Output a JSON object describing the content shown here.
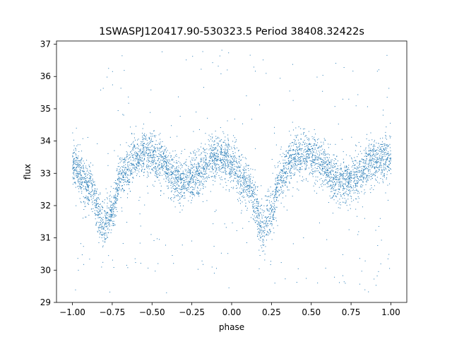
{
  "chart_data": {
    "type": "scatter",
    "title": "1SWASPJ120417.90-530323.5 Period 38408.32422s",
    "xlabel": "phase",
    "ylabel": "flux",
    "xlim": [
      -1.1,
      1.1
    ],
    "ylim": [
      29,
      37.1
    ],
    "xticks": [
      -1.0,
      -0.75,
      -0.5,
      -0.25,
      0.0,
      0.25,
      0.5,
      0.75,
      1.0
    ],
    "xtick_labels": [
      "−1.00",
      "−0.75",
      "−0.50",
      "−0.25",
      "0.00",
      "0.25",
      "0.50",
      "0.75",
      "1.00"
    ],
    "yticks": [
      29,
      30,
      31,
      32,
      33,
      34,
      35,
      36,
      37
    ],
    "ytick_labels": [
      "29",
      "30",
      "31",
      "32",
      "33",
      "34",
      "35",
      "36",
      "37"
    ],
    "grid": false,
    "marker_color": "#1f77b4",
    "curve": {
      "description_points_phase": [
        -1.0,
        -0.9,
        -0.8,
        -0.75,
        -0.7,
        -0.6,
        -0.55,
        -0.45,
        -0.35,
        -0.3,
        -0.2,
        -0.1,
        -0.05,
        0.0,
        0.1,
        0.2,
        0.25,
        0.3,
        0.4,
        0.45,
        0.55,
        0.65,
        0.7,
        0.8,
        0.9,
        0.95,
        1.0
      ],
      "description_points_flux": [
        33.3,
        32.6,
        31.4,
        31.8,
        32.9,
        33.5,
        33.6,
        33.4,
        32.8,
        32.7,
        33.0,
        33.5,
        33.5,
        33.3,
        32.6,
        31.3,
        31.8,
        32.9,
        33.5,
        33.6,
        33.4,
        32.8,
        32.7,
        33.0,
        33.4,
        33.5,
        33.4
      ]
    },
    "scatter_sigma": 0.35,
    "outlier_range": [
      29.3,
      36.9
    ]
  }
}
